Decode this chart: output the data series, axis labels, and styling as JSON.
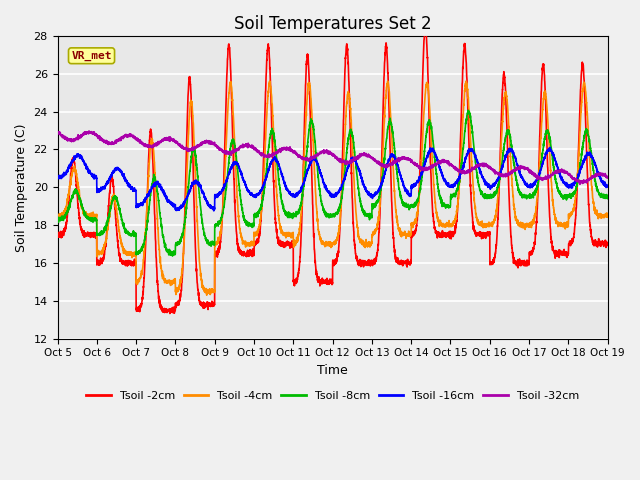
{
  "title": "Soil Temperatures Set 2",
  "xlabel": "Time",
  "ylabel": "Soil Temperature (C)",
  "ylim": [
    12,
    28
  ],
  "yticks": [
    12,
    14,
    16,
    18,
    20,
    22,
    24,
    26,
    28
  ],
  "annotation_text": "VR_met",
  "series_colors": {
    "Tsoil -2cm": "#FF0000",
    "Tsoil -4cm": "#FF8C00",
    "Tsoil -8cm": "#00BB00",
    "Tsoil -16cm": "#0000FF",
    "Tsoil -32cm": "#AA00AA"
  },
  "xtick_labels": [
    "Oct 5",
    "Oct 6",
    "Oct 7",
    "Oct 8",
    "Oct 9",
    "Oct 10",
    "Oct 11",
    "Oct 12",
    "Oct 13",
    "Oct 14",
    "Oct 15",
    "Oct 16",
    "Oct 17",
    "Oct 18",
    "Oct 19"
  ],
  "bg_color": "#E8E8E8",
  "grid_color": "#FFFFFF",
  "line_width": 1.2,
  "fig_bg": "#F0F0F0"
}
